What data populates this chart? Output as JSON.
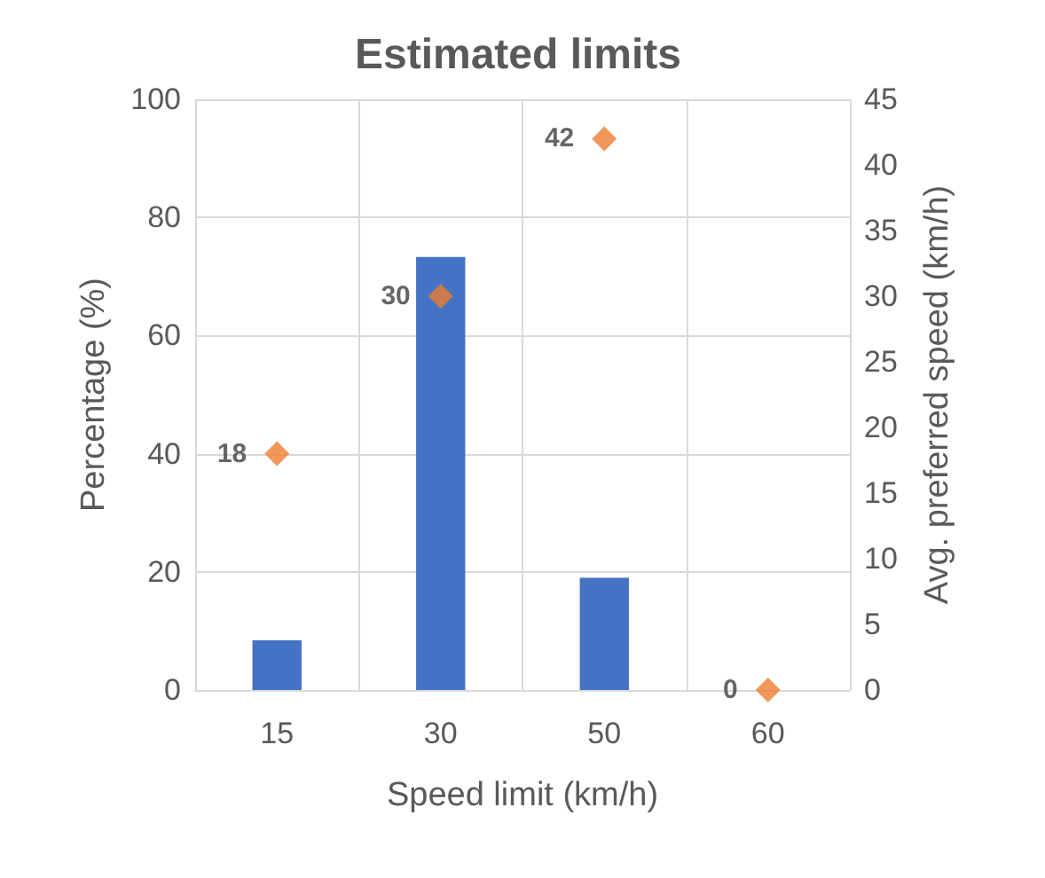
{
  "chart_data": {
    "type": "bar",
    "title": "Estimated limits",
    "xlabel": "Speed limit (km/h)",
    "ylabel": "Percentage (%)",
    "y2label": "Avg. preferred speed (km/h)",
    "categories": [
      "15",
      "30",
      "50",
      "60"
    ],
    "series": [
      {
        "color": "#4472c4",
        "values": [
          8.4,
          73.3,
          19,
          0
        ]
      },
      {
        "type": "scatter",
        "axis": "y2",
        "color": "#ed7d31",
        "values": [
          18,
          30,
          42,
          0
        ],
        "data_labels": true,
        "marker": "diamond"
      }
    ],
    "ylim": [
      0,
      100
    ],
    "yticks": [
      0,
      20,
      40,
      60,
      80,
      100
    ],
    "y2lim": [
      0,
      45
    ],
    "y2ticks": [
      0,
      5,
      10,
      15,
      20,
      25,
      30,
      35,
      40,
      45
    ],
    "grid": true
  }
}
